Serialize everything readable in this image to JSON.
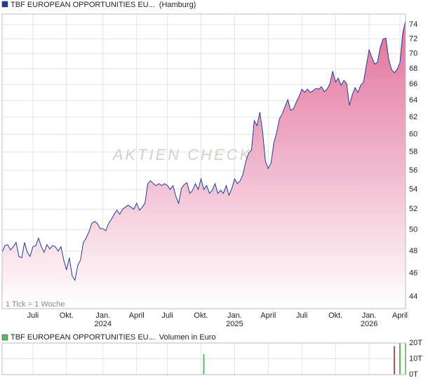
{
  "chart_data": [
    {
      "type": "area",
      "series": [
        {
          "name": "TBF EUROPEAN OPPORTUNITIES EU...",
          "color": "#1c3c9c",
          "fill_color": "#e2709a",
          "values": [
            47.9,
            48.5,
            48.6,
            48.1,
            48.4,
            48.8,
            47.5,
            47.4,
            48.8,
            47.9,
            47.5,
            48.4,
            48.5,
            49.2,
            48.4,
            47.9,
            48.6,
            48.2,
            48.5,
            48.4,
            48.0,
            48.4,
            47.2,
            46.3,
            47.4,
            45.8,
            45.4,
            46.7,
            47.2,
            48.8,
            49.2,
            49.8,
            50.6,
            50.8,
            50.6,
            50.1,
            50.1,
            49.9,
            50.6,
            51.0,
            51.5,
            51.9,
            51.5,
            52.0,
            52.2,
            52.4,
            52.2,
            52.0,
            52.6,
            51.9,
            52.2,
            52.6,
            54.6,
            54.9,
            54.6,
            54.4,
            54.6,
            54.4,
            54.6,
            54.4,
            54.0,
            54.4,
            53.3,
            52.6,
            54.1,
            54.5,
            54.7,
            53.6,
            53.9,
            54.6,
            54.0,
            55.1,
            54.0,
            54.4,
            53.6,
            53.9,
            54.6,
            53.6,
            53.9,
            53.6,
            54.4,
            53.4,
            54.1,
            55.1,
            54.6,
            54.9,
            55.6,
            57.0,
            57.9,
            58.2,
            61.6,
            61.0,
            62.6,
            60.2,
            57.0,
            56.2,
            56.8,
            59.0,
            60.2,
            61.8,
            62.4,
            63.3,
            64.1,
            62.8,
            63.0,
            63.8,
            64.5,
            65.4,
            65.0,
            65.4,
            65.0,
            65.2,
            65.5,
            65.4,
            65.7,
            65.1,
            65.4,
            66.1,
            67.7,
            66.3,
            66.8,
            65.9,
            66.5,
            66.1,
            63.4,
            64.7,
            65.6,
            65.0,
            65.9,
            66.3,
            68.4,
            70.5,
            69.5,
            68.6,
            68.9,
            70.9,
            72.0,
            72.1,
            69.3,
            67.9,
            67.5,
            67.9,
            68.8,
            72.8,
            74.5
          ]
        }
      ],
      "exchange": "(Hamburg)",
      "note": "1 Tick = 1 Woche",
      "watermark": "AKTIEN CHECK",
      "xlim": [
        0,
        144
      ],
      "xticks": [
        {
          "value": 11,
          "label": "Juli"
        },
        {
          "value": 23,
          "label": "Okt."
        },
        {
          "value": 36,
          "label": "Jan."
        },
        {
          "value": 48,
          "label": "April"
        },
        {
          "value": 59,
          "label": "Juli"
        },
        {
          "value": 71,
          "label": "Okt."
        },
        {
          "value": 83,
          "label": "Jan."
        },
        {
          "value": 95,
          "label": "April"
        },
        {
          "value": 107,
          "label": "Juli"
        },
        {
          "value": 119,
          "label": "Okt."
        },
        {
          "value": 131,
          "label": "Jan."
        },
        {
          "value": 142,
          "label": "April"
        }
      ],
      "year_labels": [
        {
          "value": 36,
          "label": "2024"
        },
        {
          "value": 83,
          "label": "2025"
        },
        {
          "value": 131,
          "label": "2026"
        }
      ],
      "ylim": [
        43,
        75.5
      ],
      "yticks": [
        44,
        46,
        48,
        50,
        52,
        54,
        56,
        58,
        60,
        62,
        64,
        66,
        68,
        70,
        72,
        74
      ],
      "log_scale": true,
      "grid": true
    },
    {
      "type": "bar",
      "series": [
        {
          "name": "TBF EUROPEAN OPPORTUNITIES EU...",
          "color": "#5cb85c",
          "x": [
            72,
            140,
            142,
            144
          ],
          "values": [
            13,
            18,
            20,
            20
          ],
          "colors": [
            "#5cb85c",
            "#c0504d",
            "#5cb85c",
            "#5cb85c"
          ]
        }
      ],
      "unit_label": "Volumen in Euro",
      "xlim": [
        0,
        144
      ],
      "ylim": [
        0,
        20
      ],
      "yticks": [
        {
          "value": 0,
          "label": "0T"
        },
        {
          "value": 10,
          "label": "10T"
        },
        {
          "value": 20,
          "label": "20T"
        }
      ],
      "grid": true
    }
  ]
}
